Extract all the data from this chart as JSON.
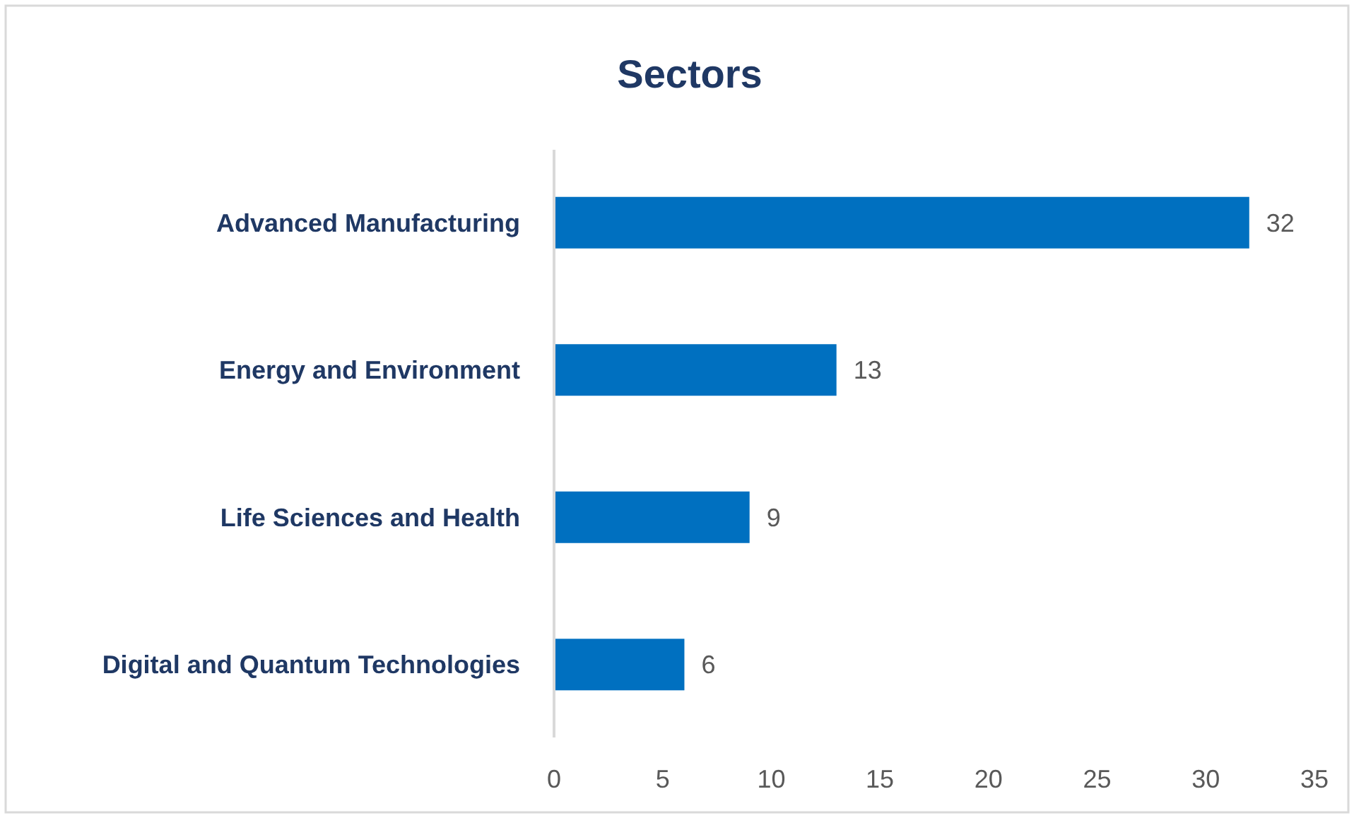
{
  "chart_data": {
    "type": "bar",
    "orientation": "horizontal",
    "title": "Sectors",
    "categories": [
      "Advanced Manufacturing",
      "Energy and Environment",
      "Life Sciences and Health",
      "Digital and Quantum Technologies"
    ],
    "values": [
      32,
      13,
      9,
      6
    ],
    "color": "#0070c0",
    "xlim": [
      0,
      35
    ],
    "xticks": [
      0,
      5,
      10,
      15,
      20,
      25,
      30,
      35
    ],
    "grid": false,
    "data_labels": true
  }
}
